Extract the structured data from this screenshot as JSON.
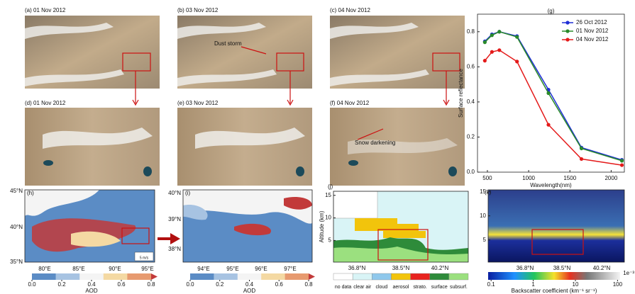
{
  "image_panels": [
    "(a) 01 Nov 2012",
    "(b) 03 Nov 2012",
    "(c) 04 Nov 2012",
    "(d) 01 Nov 2012",
    "(e) 03 Nov 2012",
    "(f) 04 Nov 2012"
  ],
  "annotations": [
    "Dust storm",
    "Snow darkening"
  ],
  "chart_data": {
    "type": "line",
    "title": "(g)",
    "xlabel": "Wavelength(nm)",
    "ylabel": "Surface reflectance",
    "x": [
      469,
      555,
      645,
      859,
      1240,
      1640,
      2130
    ],
    "series": [
      {
        "name": "26 Oct 2012",
        "color": "#1f2fd6",
        "values": [
          0.745,
          0.785,
          0.8,
          0.775,
          0.47,
          0.14,
          0.07
        ]
      },
      {
        "name": "01 Nov 2012",
        "color": "#2a8a2a",
        "values": [
          0.74,
          0.78,
          0.8,
          0.77,
          0.45,
          0.135,
          0.065
        ]
      },
      {
        "name": "04 Nov 2012",
        "color": "#e41a1a",
        "values": [
          0.635,
          0.685,
          0.695,
          0.63,
          0.27,
          0.075,
          0.04
        ]
      }
    ],
    "xlim": [
      380,
      2160
    ],
    "xticks": [
      500,
      1000,
      1500,
      2000
    ],
    "ylim": [
      0,
      0.9
    ],
    "yticks": [
      {
        "value": 0,
        "label": "0.0"
      },
      {
        "value": 0.2,
        "label": "0.2"
      },
      {
        "value": 0.4,
        "label": "0.4"
      },
      {
        "value": 0.6,
        "label": "0.6"
      },
      {
        "value": 0.8,
        "label": "0.8"
      }
    ],
    "legend": "upper right"
  },
  "maps": [
    {
      "label": "(h)",
      "lat_labels": [
        "45°N",
        "40°N",
        "35°N"
      ],
      "lon_labels": [
        "80°E",
        "85°E",
        "90°E",
        "95°E"
      ],
      "wind_scale": "5 m/s",
      "colorbar": {
        "label": "AOD",
        "lim": [
          0,
          0.8
        ],
        "ticks": [
          {
            "value": 0,
            "label": "0.0"
          },
          {
            "value": 0.2,
            "label": "0.2"
          },
          {
            "value": 0.4,
            "label": "0.4"
          },
          {
            "value": 0.6,
            "label": "0.6"
          },
          {
            "value": 0.8,
            "label": "0.8"
          }
        ]
      }
    },
    {
      "label": "(i)",
      "lat_labels": [
        "40°N",
        "39°N",
        "38°N"
      ],
      "lon_labels": [
        "94°E",
        "95°E",
        "96°E",
        "97°E"
      ],
      "colorbar": {
        "label": "AOD",
        "lim": [
          0,
          0.8
        ],
        "ticks": [
          {
            "value": 0,
            "label": "0.0"
          },
          {
            "value": 0.2,
            "label": "0.2"
          },
          {
            "value": 0.4,
            "label": "0.4"
          },
          {
            "value": 0.6,
            "label": "0.6"
          },
          {
            "value": 0.8,
            "label": "0.8"
          }
        ]
      }
    }
  ],
  "profiles": [
    {
      "label": "(j)",
      "ylabel": "Altitude (km)",
      "ylim": [
        0.2,
        15.9
      ],
      "yticks": [
        5,
        10,
        15
      ],
      "lat_labels": [
        "36.8°N",
        "38.5°N",
        "40.2°N"
      ],
      "legend": [
        {
          "name": "no data",
          "color": "#ffffff"
        },
        {
          "name": "clear air",
          "color": "#d9f4f6"
        },
        {
          "name": "cloud",
          "color": "#8fc8ec"
        },
        {
          "name": "aerosol",
          "color": "#f2c40c"
        },
        {
          "name": "strato.",
          "color": "#e8231f"
        },
        {
          "name": "surface",
          "color": "#2e8b3a"
        },
        {
          "name": "subsurf.",
          "color": "#9be07f"
        }
      ]
    },
    {
      "label": "(k)",
      "ylim": [
        0.4,
        15.4
      ],
      "yticks": [
        5,
        10,
        15
      ],
      "lat_labels": [
        "36.8°N",
        "38.5°N",
        "40.2°N"
      ],
      "colorbar": {
        "label": "Backscatter coefficient (km⁻¹ sr⁻¹)",
        "multiplier": "1e⁻³",
        "scale": "log",
        "lim": [
          0.085,
          115
        ],
        "ticks": [
          0.1,
          1,
          10,
          100
        ]
      }
    }
  ]
}
